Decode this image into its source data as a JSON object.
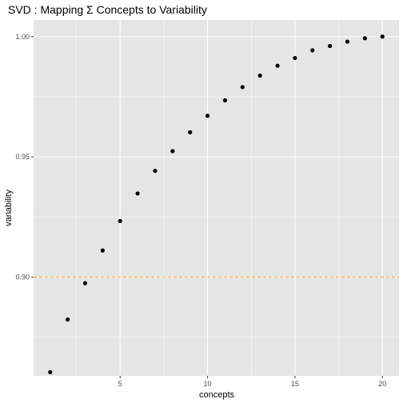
{
  "chart_data": {
    "type": "scatter",
    "title": "SVD :  Mapping Σ Concepts to Variability",
    "xlabel": "concepts",
    "ylabel": "variability",
    "xlim": [
      0.05,
      20.95
    ],
    "ylim": [
      0.859,
      1.0069
    ],
    "x_ticks": [
      5,
      10,
      15,
      20
    ],
    "x_tick_labels": [
      "5",
      "10",
      "15",
      "20"
    ],
    "y_ticks": [
      0.9,
      0.95,
      1.0
    ],
    "y_tick_labels": [
      "0.90",
      "0.95",
      "1.00"
    ],
    "points": [
      {
        "x": 1,
        "y": 0.8605
      },
      {
        "x": 2,
        "y": 0.8824
      },
      {
        "x": 3,
        "y": 0.8975
      },
      {
        "x": 4,
        "y": 0.9111
      },
      {
        "x": 5,
        "y": 0.9233
      },
      {
        "x": 6,
        "y": 0.9348
      },
      {
        "x": 7,
        "y": 0.9442
      },
      {
        "x": 8,
        "y": 0.9524
      },
      {
        "x": 9,
        "y": 0.9602
      },
      {
        "x": 10,
        "y": 0.9671
      },
      {
        "x": 11,
        "y": 0.9735
      },
      {
        "x": 12,
        "y": 0.979
      },
      {
        "x": 13,
        "y": 0.9838
      },
      {
        "x": 14,
        "y": 0.9879
      },
      {
        "x": 15,
        "y": 0.9911
      },
      {
        "x": 16,
        "y": 0.9943
      },
      {
        "x": 17,
        "y": 0.9961
      },
      {
        "x": 18,
        "y": 0.9979
      },
      {
        "x": 19,
        "y": 0.9993
      },
      {
        "x": 20,
        "y": 1.0
      }
    ],
    "reference_line": {
      "y": 0.9,
      "color": "#ffa500",
      "style": "dashed"
    },
    "grid": true,
    "colors": {
      "panel_background": "#e5e5e5",
      "grid_major": "#ffffff",
      "point": "#000000"
    }
  }
}
